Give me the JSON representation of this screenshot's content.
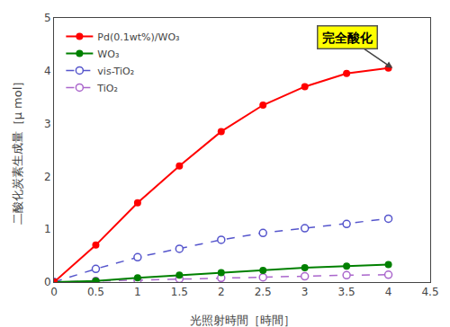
{
  "chart_data": {
    "type": "line",
    "x": [
      0,
      0.5,
      1.0,
      1.5,
      2.0,
      2.5,
      3.0,
      3.5,
      4.0
    ],
    "series": [
      {
        "name": "TiO₂",
        "color": "#AA66CC",
        "marker": "open circle",
        "line_style": "dashed",
        "values": [
          0,
          0.02,
          0.04,
          0.06,
          0.08,
          0.09,
          0.11,
          0.13,
          0.14
        ]
      },
      {
        "name": "vis-TiO₂",
        "color": "#5555CC",
        "marker": "open circle",
        "line_style": "dashed",
        "values": [
          0,
          0.25,
          0.47,
          0.63,
          0.8,
          0.93,
          1.02,
          1.1,
          1.2
        ]
      },
      {
        "name": "WO₃",
        "color": "#008000",
        "marker": "circle",
        "line_style": "solid",
        "values": [
          0,
          0.02,
          0.08,
          0.13,
          0.18,
          0.22,
          0.27,
          0.3,
          0.33
        ]
      },
      {
        "name": "Pd(0.1wt%)/WO₃",
        "color": "#FF0000",
        "marker": "circle",
        "line_style": "solid",
        "values": [
          0,
          0.7,
          1.5,
          2.2,
          2.85,
          3.35,
          3.7,
          3.95,
          4.05
        ]
      }
    ],
    "xlabel": "光照射時間［時間］",
    "ylabel": "二酸化炭素生成量［μ mol］",
    "xlim": [
      0,
      4.5
    ],
    "ylim": [
      0,
      5
    ],
    "xticks": [
      0,
      0.5,
      1,
      1.5,
      2,
      2.5,
      3,
      3.5,
      4,
      4.5
    ],
    "yticks": [
      0,
      1,
      2,
      3,
      4,
      5
    ],
    "annotations": [
      {
        "text": "完全酸化",
        "x": 4.05,
        "y": 4.05
      }
    ],
    "legend": "upper left",
    "grid": false
  }
}
